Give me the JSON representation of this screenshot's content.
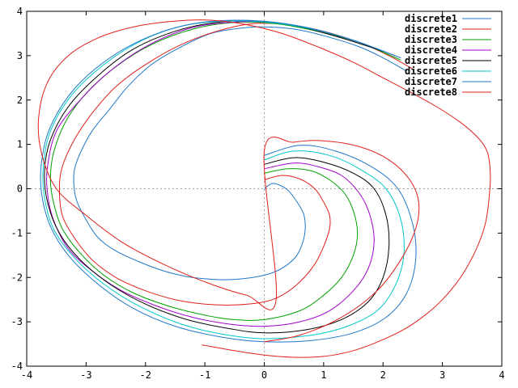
{
  "chart_data": {
    "type": "line",
    "title": "",
    "xlabel": "",
    "ylabel": "",
    "xlim": [
      -4,
      4
    ],
    "ylim": [
      -4,
      4
    ],
    "xticks": [
      -4,
      -3,
      -2,
      -1,
      0,
      1,
      2,
      3,
      4
    ],
    "yticks": [
      -4,
      -3,
      -2,
      -1,
      0,
      1,
      2,
      3,
      4
    ],
    "zero_axes_dashed": true,
    "legend_position": "top-right",
    "series": [
      {
        "name": "discrete1",
        "color": "#1f77c8",
        "x": [
          0.0,
          0.15,
          0.37,
          0.5,
          0.6,
          0.67,
          0.69,
          0.65,
          0.55,
          0.4,
          0.2,
          0.0,
          -0.3,
          -0.6,
          -0.9,
          -1.3,
          -1.7,
          -2.1,
          -2.5,
          -2.8,
          -3.0,
          -3.15,
          -3.2,
          -3.2,
          -3.1,
          -2.9,
          -2.6,
          -2.3,
          -1.9,
          -1.4,
          -0.9,
          -0.4,
          0.0,
          0.5,
          1.0,
          1.6,
          2.0,
          2.4
        ],
        "y": [
          0.0,
          0.12,
          0.0,
          -0.2,
          -0.4,
          -0.6,
          -0.9,
          -1.2,
          -1.5,
          -1.7,
          -1.86,
          -1.95,
          -2.02,
          -2.05,
          -2.04,
          -1.98,
          -1.85,
          -1.65,
          -1.4,
          -1.1,
          -0.7,
          -0.3,
          0.0,
          0.4,
          0.8,
          1.3,
          1.8,
          2.3,
          2.8,
          3.2,
          3.5,
          3.62,
          3.65,
          3.6,
          3.45,
          3.2,
          2.95,
          2.65
        ]
      },
      {
        "name": "discrete2",
        "color": "#e0201b",
        "x": [
          0.0,
          0.3,
          0.6,
          0.85,
          1.0,
          1.1,
          1.1,
          1.0,
          0.85,
          0.6,
          0.3,
          0.0,
          -0.5,
          -1.0,
          -1.5,
          -2.0,
          -2.5,
          -2.9,
          -3.2,
          -3.4,
          -3.45,
          -3.4,
          -3.2,
          -2.9,
          -2.5,
          -2.0,
          -1.4,
          -0.8,
          -0.2,
          0.4,
          1.0,
          1.6,
          2.1,
          2.5
        ],
        "y": [
          0.2,
          0.3,
          0.22,
          0.0,
          -0.3,
          -0.6,
          -0.9,
          -1.3,
          -1.7,
          -2.1,
          -2.4,
          -2.55,
          -2.62,
          -2.6,
          -2.5,
          -2.3,
          -2.0,
          -1.6,
          -1.1,
          -0.6,
          0.0,
          0.5,
          1.1,
          1.7,
          2.3,
          2.8,
          3.25,
          3.55,
          3.72,
          3.7,
          3.55,
          3.3,
          3.0,
          2.7
        ]
      },
      {
        "name": "discrete3",
        "color": "#00a000",
        "x": [
          0.0,
          0.4,
          0.8,
          1.1,
          1.35,
          1.5,
          1.57,
          1.5,
          1.3,
          1.0,
          0.6,
          0.0,
          -0.5,
          -1.0,
          -1.6,
          -2.2,
          -2.7,
          -3.1,
          -3.4,
          -3.55,
          -3.6,
          -3.55,
          -3.35,
          -3.0,
          -2.5,
          -1.9,
          -1.2,
          -0.5,
          0.2,
          0.9,
          1.6,
          2.3
        ],
        "y": [
          0.35,
          0.45,
          0.4,
          0.2,
          -0.1,
          -0.5,
          -1.0,
          -1.5,
          -2.0,
          -2.4,
          -2.75,
          -2.95,
          -2.95,
          -2.85,
          -2.65,
          -2.35,
          -1.95,
          -1.45,
          -0.9,
          -0.3,
          0.2,
          0.8,
          1.5,
          2.15,
          2.75,
          3.25,
          3.6,
          3.75,
          3.72,
          3.55,
          3.3,
          2.9
        ]
      },
      {
        "name": "discrete4",
        "color": "#a000c8",
        "x": [
          0.0,
          0.5,
          0.9,
          1.3,
          1.6,
          1.78,
          1.85,
          1.75,
          1.5,
          1.1,
          0.6,
          0.0,
          -0.6,
          -1.2,
          -1.8,
          -2.4,
          -2.9,
          -3.3,
          -3.55,
          -3.65,
          -3.65,
          -3.5,
          -3.1,
          -2.6,
          -2.0,
          -1.3,
          -0.6,
          0.1,
          0.8,
          1.5,
          2.2
        ],
        "y": [
          0.45,
          0.58,
          0.5,
          0.3,
          -0.1,
          -0.6,
          -1.2,
          -1.8,
          -2.3,
          -2.75,
          -3.0,
          -3.1,
          -3.05,
          -2.9,
          -2.65,
          -2.3,
          -1.85,
          -1.35,
          -0.7,
          -0.1,
          0.5,
          1.3,
          2.0,
          2.65,
          3.2,
          3.6,
          3.75,
          3.75,
          3.6,
          3.35,
          3.0
        ]
      },
      {
        "name": "discrete5",
        "color": "#000000",
        "x": [
          0.0,
          0.5,
          1.0,
          1.5,
          1.85,
          2.05,
          2.1,
          2.0,
          1.75,
          1.3,
          0.7,
          0.0,
          -0.6,
          -1.3,
          -2.0,
          -2.6,
          -3.1,
          -3.45,
          -3.65,
          -3.7,
          -3.6,
          -3.3,
          -2.8,
          -2.2,
          -1.5,
          -0.8,
          -0.1,
          0.6,
          1.3,
          2.0
        ],
        "y": [
          0.55,
          0.7,
          0.6,
          0.35,
          0.0,
          -0.6,
          -1.3,
          -2.0,
          -2.55,
          -2.95,
          -3.18,
          -3.25,
          -3.15,
          -2.95,
          -2.6,
          -2.15,
          -1.6,
          -1.0,
          -0.3,
          0.4,
          1.1,
          1.85,
          2.55,
          3.15,
          3.55,
          3.75,
          3.78,
          3.65,
          3.4,
          3.1
        ]
      },
      {
        "name": "discrete6",
        "color": "#00c8c8",
        "x": [
          0.0,
          0.5,
          1.1,
          1.6,
          2.05,
          2.3,
          2.35,
          2.2,
          1.9,
          1.4,
          0.8,
          0.0,
          -0.7,
          -1.4,
          -2.1,
          -2.7,
          -3.2,
          -3.55,
          -3.7,
          -3.72,
          -3.6,
          -3.25,
          -2.7,
          -2.05,
          -1.35,
          -0.6,
          0.1,
          0.8,
          1.5,
          2.1
        ],
        "y": [
          0.65,
          0.85,
          0.75,
          0.45,
          0.0,
          -0.7,
          -1.5,
          -2.2,
          -2.75,
          -3.1,
          -3.3,
          -3.38,
          -3.28,
          -3.05,
          -2.65,
          -2.15,
          -1.55,
          -0.9,
          -0.2,
          0.5,
          1.3,
          2.1,
          2.8,
          3.35,
          3.68,
          3.78,
          3.75,
          3.6,
          3.35,
          3.05
        ]
      },
      {
        "name": "discrete7",
        "color": "#1f77c8",
        "x": [
          0.0,
          0.6,
          1.2,
          1.8,
          2.25,
          2.5,
          2.55,
          2.4,
          2.05,
          1.5,
          0.8,
          0.0,
          -0.7,
          -1.5,
          -2.2,
          -2.8,
          -3.3,
          -3.6,
          -3.75,
          -3.75,
          -3.6,
          -3.2,
          -2.6,
          -1.9,
          -1.2,
          -0.5,
          0.2,
          0.9,
          1.6,
          2.3
        ],
        "y": [
          0.75,
          0.98,
          0.85,
          0.5,
          0.0,
          -0.8,
          -1.6,
          -2.35,
          -2.9,
          -3.25,
          -3.42,
          -3.45,
          -3.35,
          -3.1,
          -2.7,
          -2.15,
          -1.5,
          -0.85,
          -0.1,
          0.6,
          1.4,
          2.25,
          2.95,
          3.45,
          3.72,
          3.8,
          3.75,
          3.58,
          3.3,
          2.95
        ]
      },
      {
        "name": "discrete8",
        "color": "#e0201b",
        "x": [
          -1.05,
          -0.5,
          0.0,
          0.5,
          1.0,
          1.5,
          2.0,
          2.5,
          3.0,
          3.4,
          3.7,
          3.8,
          3.8,
          3.75,
          3.6,
          3.3,
          2.9,
          2.5,
          2.0,
          1.5,
          0.9,
          0.3,
          -0.3,
          -0.9,
          -1.5,
          -2.2,
          -2.8,
          -3.3,
          -3.65,
          -3.8,
          -3.75,
          -3.5,
          -3.0,
          -2.4,
          -1.7,
          -1.0,
          -0.3,
          0.2,
          0.0,
          0.5,
          1.0,
          1.6,
          2.1,
          2.45,
          2.6,
          2.55,
          2.3,
          1.9,
          1.3,
          0.6,
          0.0
        ],
        "y": [
          -3.52,
          -3.65,
          -3.75,
          -3.8,
          -3.78,
          -3.65,
          -3.4,
          -3.05,
          -2.5,
          -1.8,
          -0.9,
          0.0,
          0.5,
          0.85,
          1.15,
          1.5,
          1.85,
          2.15,
          2.5,
          2.85,
          3.2,
          3.5,
          3.7,
          3.8,
          3.78,
          3.65,
          3.4,
          3.0,
          2.4,
          1.6,
          0.8,
          0.0,
          -0.6,
          -1.2,
          -1.7,
          -2.1,
          -2.4,
          -2.5,
          0.85,
          1.05,
          1.08,
          0.95,
          0.65,
          0.2,
          -0.3,
          -0.9,
          -1.6,
          -2.3,
          -2.9,
          -3.3,
          -3.45
        ]
      }
    ]
  }
}
